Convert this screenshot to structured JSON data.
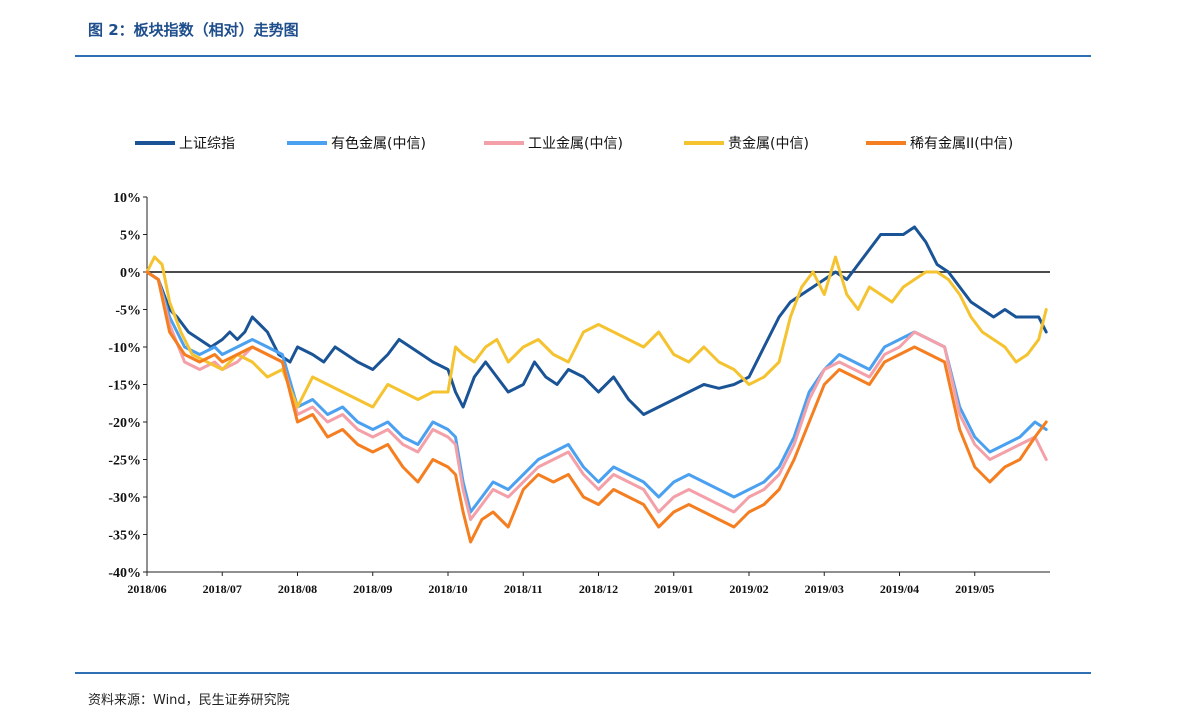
{
  "figure": {
    "title": "图 2：板块指数（相对）走势图",
    "source": "资料来源：Wind，民生证券研究院"
  },
  "chart_data": {
    "type": "line",
    "title": "",
    "xlabel": "",
    "ylabel": "",
    "ylim": [
      -40,
      10
    ],
    "yticks": [
      10,
      5,
      0,
      -5,
      -10,
      -15,
      -20,
      -25,
      -30,
      -35,
      -40
    ],
    "ytick_labels": [
      "10%",
      "5%",
      "0%",
      "-5%",
      "-10%",
      "-15%",
      "-20%",
      "-25%",
      "-30%",
      "-35%",
      "-40%"
    ],
    "xtick_labels": [
      "2018/06",
      "2018/07",
      "2018/08",
      "2018/09",
      "2018/10",
      "2018/11",
      "2018/12",
      "2019/01",
      "2019/02",
      "2019/03",
      "2019/04",
      "2019/05"
    ],
    "x_unit": "months since 2018/06 (fractional)",
    "legend_position": "top",
    "grid": false,
    "zero_line": true,
    "series": [
      {
        "name": "上证综指",
        "color": "#1a5496",
        "x": [
          0,
          0.15,
          0.3,
          0.4,
          0.55,
          0.7,
          0.85,
          1.0,
          1.1,
          1.2,
          1.3,
          1.4,
          1.5,
          1.6,
          1.75,
          1.9,
          2.0,
          2.2,
          2.35,
          2.5,
          2.65,
          2.8,
          3.0,
          3.2,
          3.35,
          3.5,
          3.65,
          3.8,
          4.0,
          4.1,
          4.2,
          4.35,
          4.5,
          4.65,
          4.8,
          5.0,
          5.15,
          5.3,
          5.45,
          5.6,
          5.8,
          6.0,
          6.2,
          6.4,
          6.6,
          6.8,
          7.0,
          7.2,
          7.4,
          7.6,
          7.8,
          8.0,
          8.2,
          8.4,
          8.55,
          8.7,
          8.85,
          9.0,
          9.15,
          9.3,
          9.45,
          9.6,
          9.75,
          9.9,
          10.05,
          10.2,
          10.35,
          10.5,
          10.65,
          10.8,
          10.95,
          11.1,
          11.25,
          11.4,
          11.55,
          11.7,
          11.85,
          11.95
        ],
        "values": [
          0,
          -1,
          -5,
          -6,
          -8,
          -9,
          -10,
          -9,
          -8,
          -9,
          -8,
          -6,
          -7,
          -8,
          -11,
          -12,
          -10,
          -11,
          -12,
          -10,
          -11,
          -12,
          -13,
          -11,
          -9,
          -10,
          -11,
          -12,
          -13,
          -16,
          -18,
          -14,
          -12,
          -14,
          -16,
          -15,
          -12,
          -14,
          -15,
          -13,
          -14,
          -16,
          -14,
          -17,
          -19,
          -18,
          -17,
          -16,
          -15,
          -15.5,
          -15,
          -14,
          -10,
          -6,
          -4,
          -3,
          -2,
          -1,
          0,
          -1,
          1,
          3,
          5,
          5,
          5,
          6,
          4,
          1,
          0,
          -2,
          -4,
          -5,
          -6,
          -5,
          -6,
          -6,
          -6,
          -8
        ]
      },
      {
        "name": "有色金属(中信)",
        "color": "#4ba0f0",
        "x": [
          0,
          0.15,
          0.3,
          0.5,
          0.7,
          0.9,
          1.0,
          1.2,
          1.4,
          1.6,
          1.8,
          2.0,
          2.2,
          2.4,
          2.6,
          2.8,
          3.0,
          3.2,
          3.4,
          3.6,
          3.8,
          4.0,
          4.1,
          4.2,
          4.3,
          4.45,
          4.6,
          4.8,
          5.0,
          5.2,
          5.4,
          5.6,
          5.8,
          6.0,
          6.2,
          6.4,
          6.6,
          6.8,
          7.0,
          7.2,
          7.4,
          7.6,
          7.8,
          8.0,
          8.2,
          8.4,
          8.6,
          8.8,
          9.0,
          9.2,
          9.4,
          9.6,
          9.8,
          10.0,
          10.2,
          10.4,
          10.6,
          10.8,
          11.0,
          11.2,
          11.4,
          11.6,
          11.8,
          11.95
        ],
        "values": [
          0,
          -1,
          -6,
          -10,
          -11,
          -10,
          -11,
          -10,
          -9,
          -10,
          -11,
          -18,
          -17,
          -19,
          -18,
          -20,
          -21,
          -20,
          -22,
          -23,
          -20,
          -21,
          -22,
          -28,
          -32,
          -30,
          -28,
          -29,
          -27,
          -25,
          -24,
          -23,
          -26,
          -28,
          -26,
          -27,
          -28,
          -30,
          -28,
          -27,
          -28,
          -29,
          -30,
          -29,
          -28,
          -26,
          -22,
          -16,
          -13,
          -11,
          -12,
          -13,
          -10,
          -9,
          -8,
          -9,
          -10,
          -18,
          -22,
          -24,
          -23,
          -22,
          -20,
          -21
        ]
      },
      {
        "name": "工业金属(中信)",
        "color": "#f4a0a8",
        "x": [
          0,
          0.15,
          0.3,
          0.5,
          0.7,
          0.9,
          1.0,
          1.2,
          1.4,
          1.6,
          1.8,
          2.0,
          2.2,
          2.4,
          2.6,
          2.8,
          3.0,
          3.2,
          3.4,
          3.6,
          3.8,
          4.0,
          4.1,
          4.2,
          4.3,
          4.45,
          4.6,
          4.8,
          5.0,
          5.2,
          5.4,
          5.6,
          5.8,
          6.0,
          6.2,
          6.4,
          6.6,
          6.8,
          7.0,
          7.2,
          7.4,
          7.6,
          7.8,
          8.0,
          8.2,
          8.4,
          8.6,
          8.8,
          9.0,
          9.2,
          9.4,
          9.6,
          9.8,
          10.0,
          10.2,
          10.4,
          10.6,
          10.8,
          11.0,
          11.2,
          11.4,
          11.6,
          11.8,
          11.95
        ],
        "values": [
          0,
          -1,
          -7,
          -12,
          -13,
          -12,
          -13,
          -12,
          -10,
          -11,
          -12,
          -19,
          -18,
          -20,
          -19,
          -21,
          -22,
          -21,
          -23,
          -24,
          -21,
          -22,
          -23,
          -29,
          -33,
          -31,
          -29,
          -30,
          -28,
          -26,
          -25,
          -24,
          -27,
          -29,
          -27,
          -28,
          -29,
          -32,
          -30,
          -29,
          -30,
          -31,
          -32,
          -30,
          -29,
          -27,
          -23,
          -17,
          -13,
          -12,
          -13,
          -14,
          -11,
          -10,
          -8,
          -9,
          -10,
          -19,
          -23,
          -25,
          -24,
          -23,
          -22,
          -25
        ]
      },
      {
        "name": "贵金属(中信)",
        "color": "#f5c330",
        "x": [
          0,
          0.1,
          0.2,
          0.3,
          0.45,
          0.6,
          0.8,
          1.0,
          1.2,
          1.4,
          1.6,
          1.8,
          2.0,
          2.2,
          2.4,
          2.6,
          2.8,
          3.0,
          3.2,
          3.4,
          3.6,
          3.8,
          4.0,
          4.1,
          4.2,
          4.35,
          4.5,
          4.65,
          4.8,
          5.0,
          5.2,
          5.4,
          5.6,
          5.8,
          6.0,
          6.2,
          6.4,
          6.6,
          6.8,
          7.0,
          7.2,
          7.4,
          7.6,
          7.8,
          8.0,
          8.2,
          8.4,
          8.55,
          8.7,
          8.85,
          9.0,
          9.15,
          9.3,
          9.45,
          9.6,
          9.75,
          9.9,
          10.05,
          10.2,
          10.35,
          10.5,
          10.65,
          10.8,
          10.95,
          11.1,
          11.25,
          11.4,
          11.55,
          11.7,
          11.85,
          11.95
        ],
        "values": [
          0,
          2,
          1,
          -4,
          -8,
          -11,
          -12,
          -13,
          -11,
          -12,
          -14,
          -13,
          -18,
          -14,
          -15,
          -16,
          -17,
          -18,
          -15,
          -16,
          -17,
          -16,
          -16,
          -10,
          -11,
          -12,
          -10,
          -9,
          -12,
          -10,
          -9,
          -11,
          -12,
          -8,
          -7,
          -8,
          -9,
          -10,
          -8,
          -11,
          -12,
          -10,
          -12,
          -13,
          -15,
          -14,
          -12,
          -6,
          -2,
          0,
          -3,
          2,
          -3,
          -5,
          -2,
          -3,
          -4,
          -2,
          -1,
          0,
          0,
          -1,
          -3,
          -6,
          -8,
          -9,
          -10,
          -12,
          -11,
          -9,
          -5
        ]
      },
      {
        "name": "稀有金属II(中信)",
        "color": "#f47e20",
        "x": [
          0,
          0.15,
          0.3,
          0.5,
          0.7,
          0.9,
          1.0,
          1.2,
          1.4,
          1.6,
          1.8,
          2.0,
          2.2,
          2.4,
          2.6,
          2.8,
          3.0,
          3.2,
          3.4,
          3.6,
          3.8,
          4.0,
          4.1,
          4.2,
          4.3,
          4.45,
          4.6,
          4.8,
          5.0,
          5.2,
          5.4,
          5.6,
          5.8,
          6.0,
          6.2,
          6.4,
          6.6,
          6.8,
          7.0,
          7.2,
          7.4,
          7.6,
          7.8,
          8.0,
          8.2,
          8.4,
          8.6,
          8.8,
          9.0,
          9.2,
          9.4,
          9.6,
          9.8,
          10.0,
          10.2,
          10.4,
          10.6,
          10.8,
          11.0,
          11.2,
          11.4,
          11.6,
          11.8,
          11.95
        ],
        "values": [
          0,
          -1,
          -8,
          -11,
          -12,
          -11,
          -12,
          -11,
          -10,
          -11,
          -12,
          -20,
          -19,
          -22,
          -21,
          -23,
          -24,
          -23,
          -26,
          -28,
          -25,
          -26,
          -27,
          -32,
          -36,
          -33,
          -32,
          -34,
          -29,
          -27,
          -28,
          -27,
          -30,
          -31,
          -29,
          -30,
          -31,
          -34,
          -32,
          -31,
          -32,
          -33,
          -34,
          -32,
          -31,
          -29,
          -25,
          -20,
          -15,
          -13,
          -14,
          -15,
          -12,
          -11,
          -10,
          -11,
          -12,
          -21,
          -26,
          -28,
          -26,
          -25,
          -22,
          -20
        ]
      }
    ]
  }
}
